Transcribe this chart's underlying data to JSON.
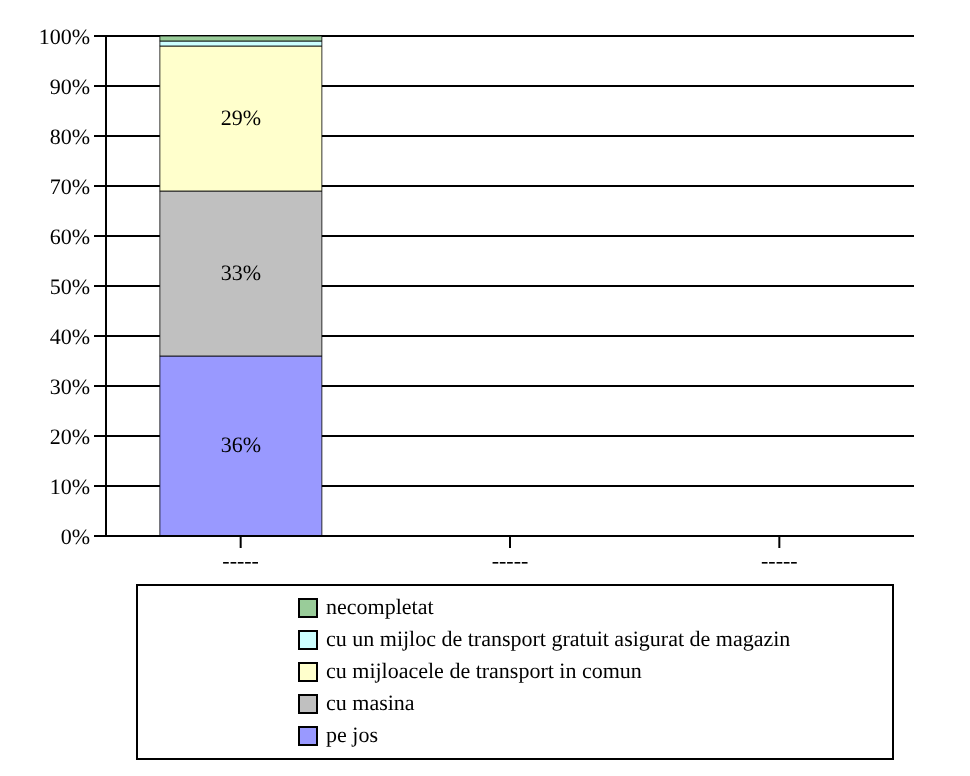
{
  "chart_data": {
    "type": "bar",
    "stacked": true,
    "categories": [
      "-----",
      "-----",
      "-----"
    ],
    "series": [
      {
        "name": "pe jos",
        "color": "#9999ff",
        "values": [
          36,
          null,
          null
        ],
        "value_labels": [
          "36%",
          null,
          null
        ]
      },
      {
        "name": "cu masina",
        "color": "#c0c0c0",
        "values": [
          33,
          null,
          null
        ],
        "value_labels": [
          "33%",
          null,
          null
        ]
      },
      {
        "name": "cu mijloacele de transport in comun",
        "color": "#ffffcc",
        "values": [
          29,
          null,
          null
        ],
        "value_labels": [
          "29%",
          null,
          null
        ]
      },
      {
        "name": "cu un mijloc de transport gratuit asigurat de magazin",
        "color": "#ccffff",
        "values": [
          1,
          null,
          null
        ]
      },
      {
        "name": "necompletat",
        "color": "#99cc99",
        "values": [
          1,
          null,
          null
        ]
      }
    ],
    "ylim": [
      0,
      100
    ],
    "yticks": [
      {
        "value": 0,
        "label": "0%"
      },
      {
        "value": 10,
        "label": "10%"
      },
      {
        "value": 20,
        "label": "20%"
      },
      {
        "value": 30,
        "label": "30%"
      },
      {
        "value": 40,
        "label": "40%"
      },
      {
        "value": 50,
        "label": "50%"
      },
      {
        "value": 60,
        "label": "60%"
      },
      {
        "value": 70,
        "label": "70%"
      },
      {
        "value": 80,
        "label": "80%"
      },
      {
        "value": 90,
        "label": "90%"
      },
      {
        "value": 100,
        "label": "100%"
      }
    ],
    "grid": "y",
    "legend": "bottom"
  }
}
